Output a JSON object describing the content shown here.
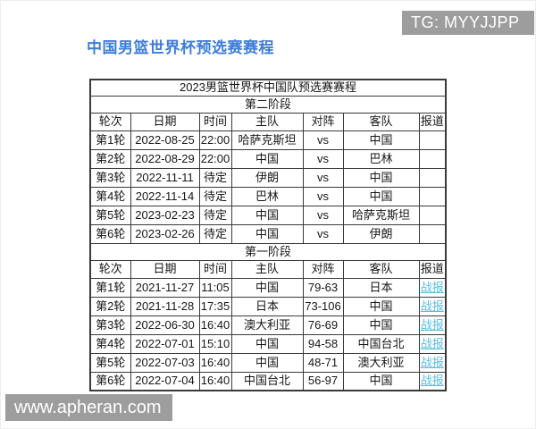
{
  "page_title": "中国男篮世界杯预选赛赛程",
  "badges": {
    "tg": "TG: MYYJJPP",
    "watermark": "www.apheran.com"
  },
  "table": {
    "title": "2023男篮世界杯中国队预选赛赛程",
    "columns": [
      "轮次",
      "日期",
      "时间",
      "主队",
      "对阵",
      "客队",
      "报道"
    ],
    "stages": [
      {
        "name": "第二阶段",
        "rows": [
          [
            "第1轮",
            "2022-08-25",
            "22:00",
            "哈萨克斯坦",
            "vs",
            "中国",
            ""
          ],
          [
            "第2轮",
            "2022-08-29",
            "22:00",
            "中国",
            "vs",
            "巴林",
            ""
          ],
          [
            "第3轮",
            "2022-11-11",
            "待定",
            "伊朗",
            "vs",
            "中国",
            ""
          ],
          [
            "第4轮",
            "2022-11-14",
            "待定",
            "巴林",
            "vs",
            "中国",
            ""
          ],
          [
            "第5轮",
            "2023-02-23",
            "待定",
            "中国",
            "vs",
            "哈萨克斯坦",
            ""
          ],
          [
            "第6轮",
            "2023-02-26",
            "待定",
            "中国",
            "vs",
            "伊朗",
            ""
          ]
        ]
      },
      {
        "name": "第一阶段",
        "rows": [
          [
            "第1轮",
            "2021-11-27",
            "11:05",
            "中国",
            "79-63",
            "日本",
            "战报"
          ],
          [
            "第2轮",
            "2021-11-28",
            "17:35",
            "日本",
            "73-106",
            "中国",
            "战报"
          ],
          [
            "第3轮",
            "2022-06-30",
            "16:40",
            "澳大利亚",
            "76-69",
            "中国",
            "战报"
          ],
          [
            "第4轮",
            "2022-07-01",
            "15:10",
            "中国",
            "94-58",
            "中国台北",
            "战报"
          ],
          [
            "第5轮",
            "2022-07-03",
            "16:40",
            "中国",
            "48-71",
            "澳大利亚",
            "战报"
          ],
          [
            "第6轮",
            "2022-07-04",
            "16:40",
            "中国台北",
            "56-97",
            "中国",
            "战报"
          ]
        ]
      }
    ]
  },
  "colors": {
    "title_blue": "#3e7dd8",
    "link_blue": "#58bce2",
    "badge_gray": "#9d9d9d",
    "border": "#3a3a3a"
  }
}
